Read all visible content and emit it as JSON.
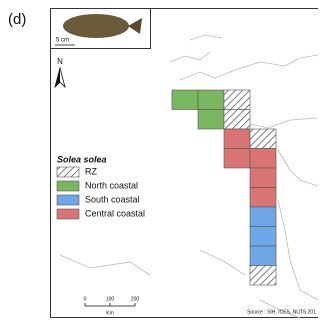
{
  "panel_label": "(d)",
  "inset": {
    "scale_label": "5 cm"
  },
  "north_label": "N",
  "legend": {
    "title": "Solea solea",
    "items": [
      "RZ",
      "North coastal",
      "South coastal",
      "Central coastal"
    ]
  },
  "scale_bar": {
    "labels": [
      "0",
      "100",
      "200"
    ],
    "unit": "Km"
  },
  "source": "Source : SIH, ICES, NUTS 201"
}
